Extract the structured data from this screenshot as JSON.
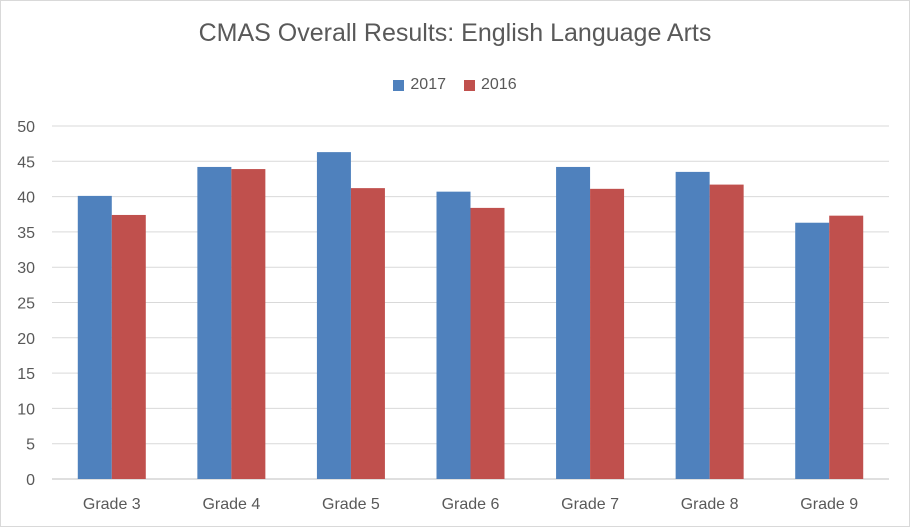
{
  "chart_data": {
    "type": "bar",
    "title": "CMAS Overall Results: English Language Arts",
    "categories": [
      "Grade 3",
      "Grade 4",
      "Grade 5",
      "Grade 6",
      "Grade 7",
      "Grade 8",
      "Grade 9"
    ],
    "series": [
      {
        "name": "2017",
        "color": "#4f81bd",
        "values": [
          40.1,
          44.2,
          46.3,
          40.7,
          44.2,
          43.5,
          36.3
        ]
      },
      {
        "name": "2016",
        "color": "#c0504d",
        "values": [
          37.4,
          43.9,
          41.2,
          38.4,
          41.1,
          41.7,
          37.3
        ]
      }
    ],
    "xlabel": "",
    "ylabel": "",
    "ylim": [
      0,
      50
    ],
    "yticks": [
      0,
      5,
      10,
      15,
      20,
      25,
      30,
      35,
      40,
      45,
      50
    ],
    "grid": true,
    "legend_position": "top"
  }
}
